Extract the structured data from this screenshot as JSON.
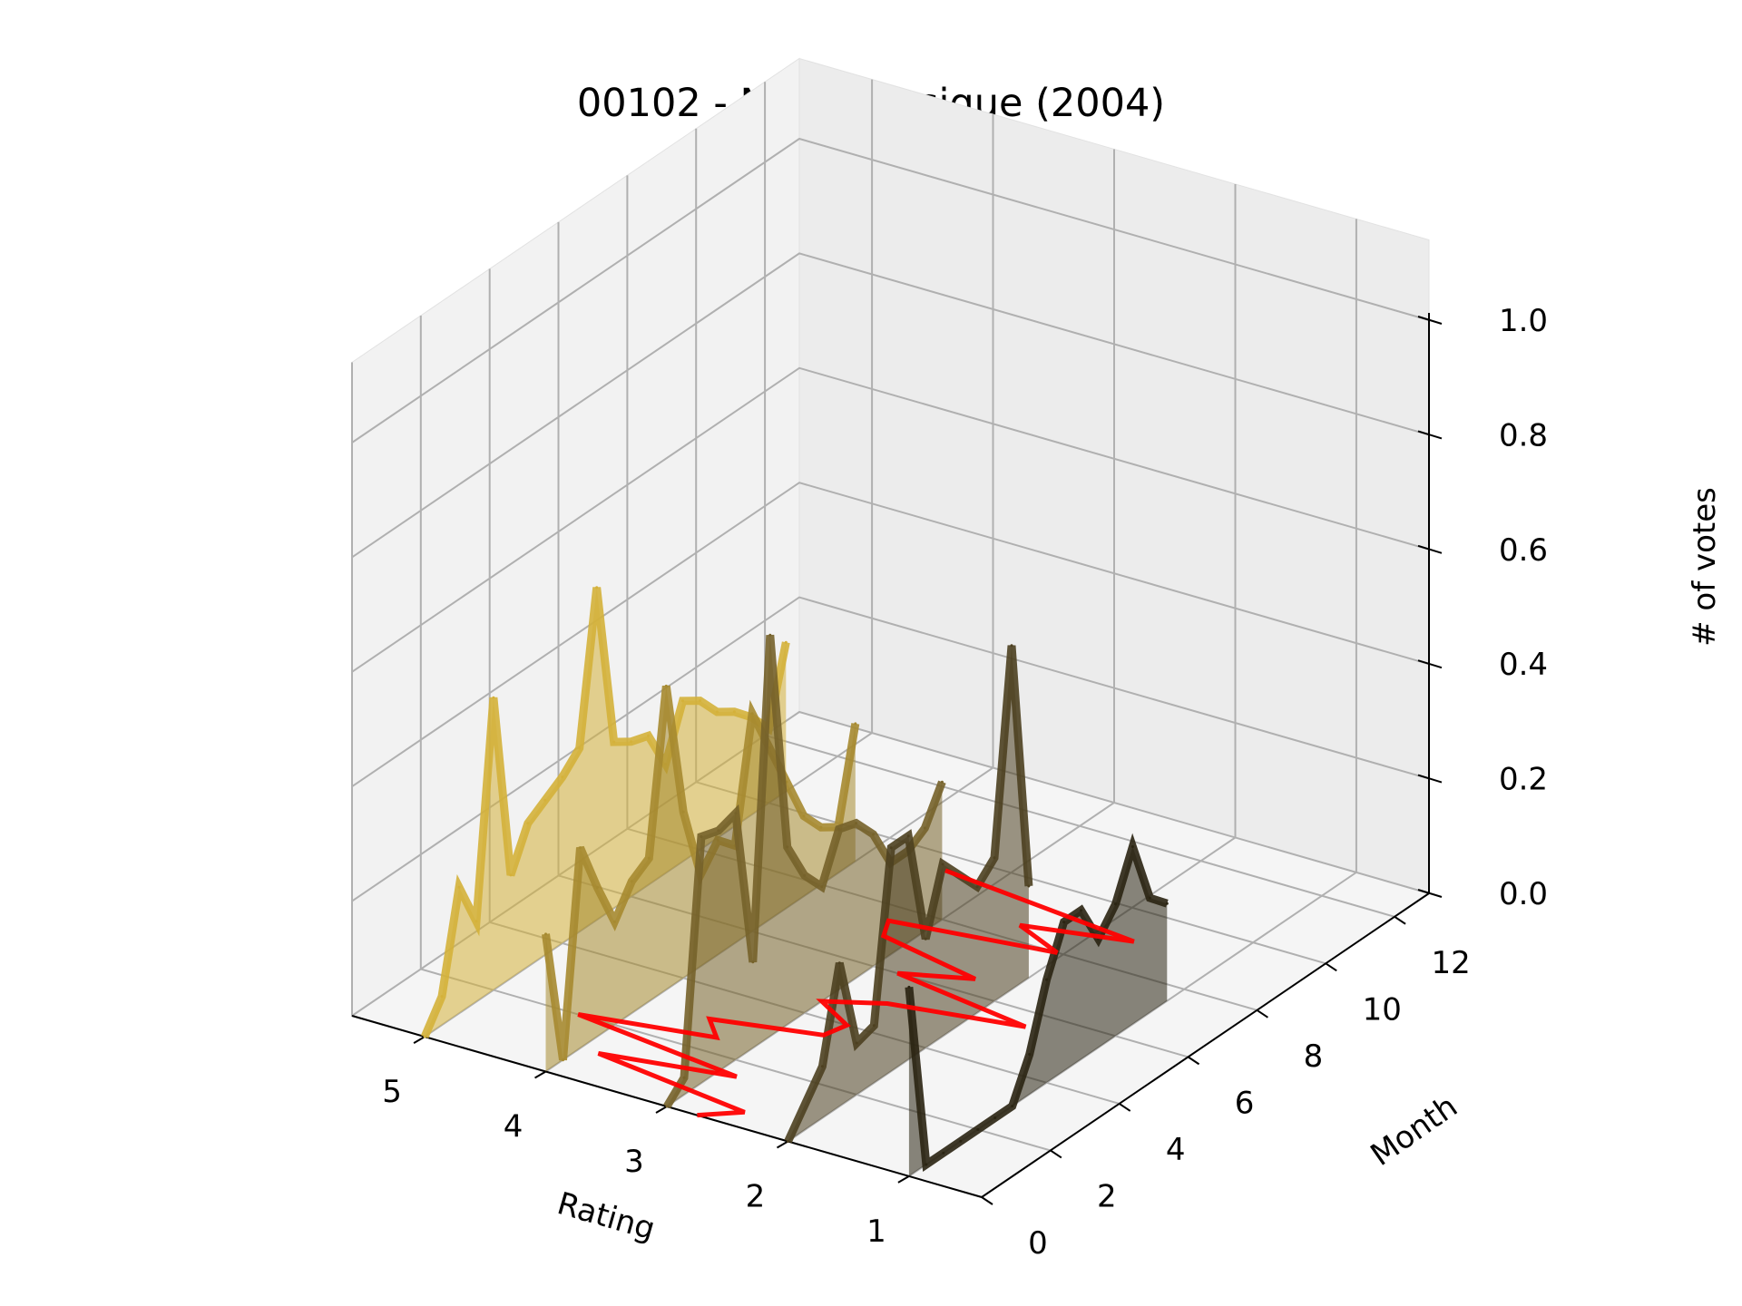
{
  "chart_data": {
    "type": "line",
    "projection": "3d",
    "title": "00102 - Notre Musique (2004)",
    "xlabel": "Rating",
    "ylabel": "Month",
    "zlabel": "# of votes",
    "x_ticks": [
      "5",
      "4",
      "3",
      "2",
      "1"
    ],
    "y_ticks": [
      "0",
      "2",
      "4",
      "6",
      "8",
      "10",
      "12"
    ],
    "z_ticks": [
      "0.0",
      "0.2",
      "0.4",
      "0.6",
      "0.8",
      "1.0"
    ],
    "ylim": [
      0,
      13
    ],
    "zlim": [
      0,
      1
    ],
    "grid": true,
    "series": [
      {
        "rating": 5,
        "color": "#d4b13a",
        "months": [
          0,
          0.5,
          1,
          1.5,
          2,
          2.5,
          3,
          3.5,
          4,
          4.5,
          5,
          5.5,
          6,
          6.5,
          7,
          7.5,
          8,
          8.5,
          9,
          9.5,
          10,
          10.5
        ],
        "values": [
          0.0,
          0.05,
          0.22,
          0.14,
          0.51,
          0.18,
          0.25,
          0.27,
          0.29,
          0.32,
          0.58,
          0.29,
          0.27,
          0.26,
          0.19,
          0.28,
          0.26,
          0.22,
          0.2,
          0.17,
          0.13,
          0.26
        ]
      },
      {
        "rating": 4,
        "color": "#a68a30",
        "months": [
          0,
          0.5,
          1,
          1.5,
          2,
          2.5,
          3,
          3.5,
          4,
          4.5,
          5,
          5.5,
          6,
          6.5,
          7,
          7.5,
          8,
          8.5,
          9
        ],
        "values": [
          0.24,
          0.0,
          0.35,
          0.26,
          0.18,
          0.23,
          0.25,
          0.53,
          0.29,
          0.16,
          0.2,
          0.17,
          0.38,
          0.3,
          0.22,
          0.14,
          0.1,
          0.08,
          0.24
        ]
      },
      {
        "rating": 3,
        "color": "#76622a",
        "months": [
          0,
          0.5,
          1,
          1.5,
          2,
          2.5,
          3,
          3.5,
          4,
          4.5,
          5,
          5.5,
          6,
          6.5,
          7,
          7.5,
          8
        ],
        "values": [
          0.0,
          0.03,
          0.43,
          0.42,
          0.43,
          0.15,
          0.7,
          0.31,
          0.24,
          0.2,
          0.28,
          0.27,
          0.23,
          0.16,
          0.16,
          0.18,
          0.24
        ]
      },
      {
        "rating": 2,
        "color": "#4d4020",
        "months": [
          0,
          1,
          1.5,
          2,
          2.5,
          3,
          3.5,
          4,
          4.5,
          5,
          5.5,
          6,
          6.5,
          7
        ],
        "values": [
          0.0,
          0.09,
          0.25,
          0.09,
          0.1,
          0.39,
          0.39,
          0.19,
          0.3,
          0.26,
          0.22,
          0.25,
          0.6,
          0.16
        ]
      },
      {
        "rating": 1,
        "color": "#2a2412",
        "months": [
          0,
          0.5,
          1,
          1.5,
          2,
          2.5,
          3,
          3.5,
          4,
          4.5,
          5,
          5.5,
          6,
          6.5,
          7,
          7.5
        ],
        "values": [
          0.33,
          0.0,
          0.0,
          0.0,
          0.0,
          0.0,
          0.0,
          0.07,
          0.18,
          0.26,
          0.26,
          0.19,
          0.23,
          0.31,
          0.2,
          0.17
        ]
      }
    ],
    "mean_line": {
      "color": "#ff0000",
      "months": [
        0,
        0.5,
        1,
        1.5,
        2,
        2.5,
        3,
        3.5,
        4,
        4.5,
        5,
        5.5,
        6,
        6.5,
        7,
        7.5,
        8,
        8.5,
        9,
        9.5
      ],
      "values": [
        2.75,
        2.5,
        3.85,
        2.85,
        4.3,
        3.3,
        3.5,
        2.7,
        2.65,
        3.0,
        2.6,
        1.6,
        2.8,
        2.3,
        3.2,
        3.3,
        2.05,
        2.5,
        1.7,
        3.4
      ]
    }
  }
}
